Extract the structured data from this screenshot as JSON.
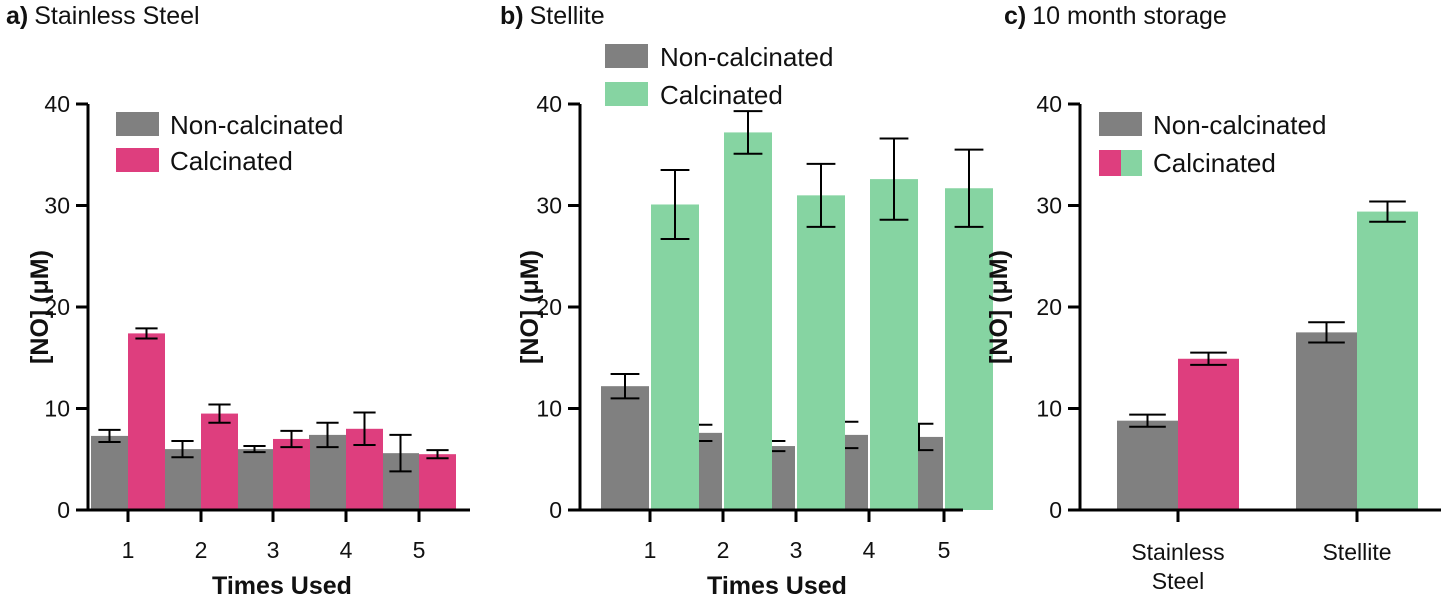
{
  "colors": {
    "non_calcinated": "#808080",
    "calcinated_stainless": "#DE3E7E",
    "calcinated_stellite": "#86D4A2"
  },
  "chart_data": [
    {
      "type": "bar",
      "panel_letter": "a)",
      "title": "Stainless Steel",
      "xlabel": "Times Used",
      "ylabel": "[NO] (μM)",
      "ylim": [
        0,
        40
      ],
      "yticks": [
        "0",
        "10",
        "20",
        "30",
        "40"
      ],
      "categories": [
        "1",
        "2",
        "3",
        "4",
        "5"
      ],
      "legend_position": "top-left",
      "series": [
        {
          "name": "Non-calcinated",
          "color": "#808080",
          "values": [
            7.3,
            6.0,
            6.0,
            7.4,
            5.6
          ],
          "errors": [
            0.6,
            0.8,
            0.3,
            1.2,
            1.8
          ]
        },
        {
          "name": "Calcinated",
          "color": "#DE3E7E",
          "values": [
            17.4,
            9.5,
            7.0,
            8.0,
            5.5
          ],
          "errors": [
            0.5,
            0.9,
            0.8,
            1.6,
            0.4
          ]
        }
      ]
    },
    {
      "type": "bar",
      "panel_letter": "b)",
      "title": "Stellite",
      "xlabel": "Times Used",
      "ylabel": "[NO] (μM)",
      "ylim": [
        0,
        40
      ],
      "yticks": [
        "0",
        "10",
        "20",
        "30",
        "40"
      ],
      "categories": [
        "1",
        "2",
        "3",
        "4",
        "5"
      ],
      "legend_position": "top-left",
      "series": [
        {
          "name": "Non-calcinated",
          "color": "#808080",
          "values": [
            12.2,
            7.6,
            6.3,
            7.4,
            7.2
          ],
          "errors": [
            1.2,
            0.8,
            0.5,
            1.3,
            1.3
          ]
        },
        {
          "name": "Calcinated",
          "color": "#86D4A2",
          "values": [
            30.1,
            37.2,
            31.0,
            32.6,
            31.7
          ],
          "errors": [
            3.4,
            2.1,
            3.1,
            4.0,
            3.8
          ]
        }
      ]
    },
    {
      "type": "bar",
      "panel_letter": "c)",
      "title": "10 month storage",
      "xlabel": "",
      "ylabel": "[NO] (μM)",
      "ylim": [
        0,
        40
      ],
      "yticks": [
        "0",
        "10",
        "20",
        "30",
        "40"
      ],
      "categories": [
        "Stainless\nSteel",
        "Stellite"
      ],
      "legend_position": "top-left",
      "legend_calcinated_colors": [
        "#DE3E7E",
        "#86D4A2"
      ],
      "series": [
        {
          "name": "Non-calcinated",
          "colors": [
            "#808080",
            "#808080"
          ],
          "values": [
            8.8,
            17.5
          ],
          "errors": [
            0.6,
            1.0
          ]
        },
        {
          "name": "Calcinated",
          "colors": [
            "#DE3E7E",
            "#86D4A2"
          ],
          "values": [
            14.9,
            29.4
          ],
          "errors": [
            0.6,
            1.0
          ]
        }
      ]
    }
  ]
}
